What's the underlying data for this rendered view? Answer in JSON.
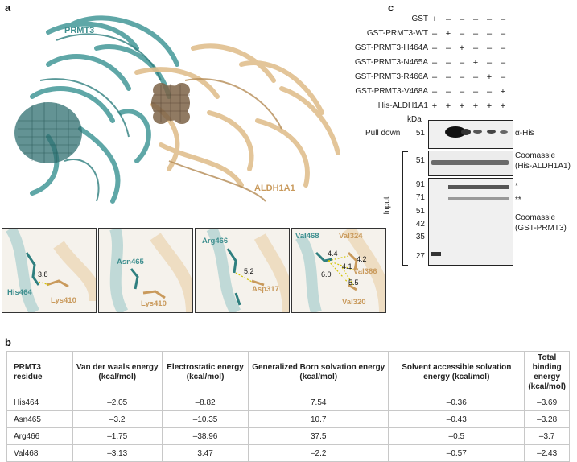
{
  "panel_a": {
    "letter": "a",
    "prmt3_label": "PRMT3",
    "aldh1a1_label": "ALDH1A1",
    "insets": [
      {
        "teal_residue": "His464",
        "tan_residue": "Lys410",
        "distances": [
          "3.8"
        ]
      },
      {
        "teal_residue": "Asn465",
        "tan_residue": "Lys410",
        "distances": []
      },
      {
        "teal_residue": "Arg466",
        "tan_residue": "Asp317",
        "distances": [
          "5.2"
        ]
      },
      {
        "teal_residue": "Val468",
        "tan_residues": [
          "Val324",
          "Val386",
          "Val320"
        ],
        "distances": [
          "4.4",
          "4.2",
          "4.1",
          "6.0",
          "5.5"
        ]
      }
    ]
  },
  "panel_b": {
    "letter": "b",
    "headers": [
      "PRMT3 residue",
      "Van der waals energy (kcal/mol)",
      "Electrostatic energy (kcal/mol)",
      "Generalized Born solvation energy (kcal/mol)",
      "Solvent accessible solvation energy (kcal/mol)",
      "Total binding energy (kcal/mol)"
    ],
    "rows": [
      [
        "His464",
        "–2.05",
        "–8.82",
        "7.54",
        "–0.36",
        "–3.69"
      ],
      [
        "Asn465",
        "–3.2",
        "–10.35",
        "10.7",
        "–0.43",
        "–3.28"
      ],
      [
        "Arg466",
        "–1.75",
        "–38.96",
        "37.5",
        "–0.5",
        "–3.7"
      ],
      [
        "Val468",
        "–3.13",
        "3.47",
        "–2.2",
        "–0.57",
        "–2.43"
      ]
    ]
  },
  "panel_c": {
    "letter": "c",
    "conditions": [
      {
        "label": "GST",
        "signs": [
          "+",
          "–",
          "–",
          "–",
          "–",
          "–"
        ]
      },
      {
        "label": "GST-PRMT3-WT",
        "signs": [
          "–",
          "+",
          "–",
          "–",
          "–",
          "–"
        ]
      },
      {
        "label": "GST-PRMT3-H464A",
        "signs": [
          "–",
          "–",
          "+",
          "–",
          "–",
          "–"
        ]
      },
      {
        "label": "GST-PRMT3-N465A",
        "signs": [
          "–",
          "–",
          "–",
          "+",
          "–",
          "–"
        ]
      },
      {
        "label": "GST-PRMT3-R466A",
        "signs": [
          "–",
          "–",
          "–",
          "–",
          "+",
          "–"
        ]
      },
      {
        "label": "GST-PRMT3-V468A",
        "signs": [
          "–",
          "–",
          "–",
          "–",
          "–",
          "+"
        ]
      },
      {
        "label": "His-ALDH1A1",
        "signs": [
          "+",
          "+",
          "+",
          "+",
          "+",
          "+"
        ]
      }
    ],
    "kda_label": "kDa",
    "pulldown_label": "Pull down",
    "pulldown_mw": "51",
    "pulldown_antibody": "α-His",
    "input_label": "Input",
    "input_top_mw": "51",
    "input_top_stain": "Coomassie",
    "input_top_protein": "(His-ALDH1A1)",
    "input_bottom_mw": [
      "91",
      "71",
      "51",
      "42",
      "35",
      "27"
    ],
    "asterisk_single": "*",
    "asterisk_double": "**",
    "input_bottom_stain": "Coomassie",
    "input_bottom_protein": "(GST-PRMT3)"
  }
}
